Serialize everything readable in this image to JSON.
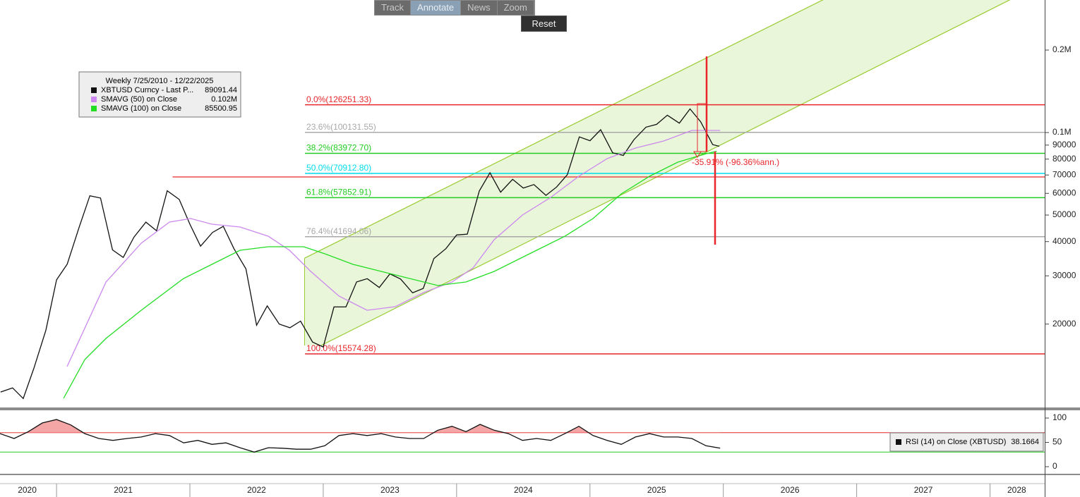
{
  "toolbar": {
    "buttons": [
      "Track",
      "Annotate",
      "News",
      "Zoom"
    ],
    "reset": "Reset"
  },
  "chart_data": [
    {
      "type": "line",
      "legend_title": "Weekly 7/25/2010 - 12/22/2025",
      "annotation": "-35.91% (-96.36%ann.)",
      "log_scale": true,
      "xlim": [
        2020.576,
        2028.41
      ],
      "ylim": [
        9925,
        304600
      ],
      "yticks": [
        {
          "value": 200000,
          "label": "0.2M"
        },
        {
          "value": 100000,
          "label": "0.1M"
        },
        90000,
        80000,
        70000,
        60000,
        50000,
        40000,
        30000,
        20000
      ],
      "xticks": [
        {
          "value": 2020.78,
          "label": "2020"
        },
        {
          "value": 2021.5,
          "label": "2021"
        },
        {
          "value": 2022.5,
          "label": "2022"
        },
        {
          "value": 2023.5,
          "label": "2023"
        },
        {
          "value": 2024.5,
          "label": "2024"
        },
        {
          "value": 2025.5,
          "label": "2025"
        },
        {
          "value": 2026.5,
          "label": "2026"
        },
        {
          "value": 2027.5,
          "label": "2027"
        },
        {
          "value": 2028.2,
          "label": "2028"
        }
      ],
      "year_boundaries": [
        2021,
        2022,
        2023,
        2024,
        2025,
        2026,
        2027,
        2028
      ],
      "series": [
        {
          "name": "XBTUSD Curncy - Last P...",
          "color": "#111111",
          "legend_value": 89091.44,
          "x": [
            2020.58,
            2020.67,
            2020.75,
            2020.83,
            2020.92,
            2021.0,
            2021.08,
            2021.17,
            2021.25,
            2021.33,
            2021.42,
            2021.5,
            2021.58,
            2021.67,
            2021.75,
            2021.83,
            2021.92,
            2022.0,
            2022.08,
            2022.17,
            2022.25,
            2022.33,
            2022.42,
            2022.5,
            2022.58,
            2022.67,
            2022.75,
            2022.83,
            2022.92,
            2023.0,
            2023.08,
            2023.17,
            2023.25,
            2023.33,
            2023.42,
            2023.5,
            2023.58,
            2023.67,
            2023.75,
            2023.83,
            2023.92,
            2024.0,
            2024.08,
            2024.17,
            2024.25,
            2024.33,
            2024.42,
            2024.5,
            2024.58,
            2024.67,
            2024.75,
            2024.83,
            2024.92,
            2025.0,
            2025.08,
            2025.17,
            2025.25,
            2025.33,
            2025.42,
            2025.5,
            2025.58,
            2025.67,
            2025.75,
            2025.83,
            2025.92,
            2025.97
          ],
          "values": [
            11300,
            11700,
            10700,
            13800,
            19000,
            29000,
            33100,
            45200,
            58800,
            57700,
            37300,
            35000,
            41500,
            47100,
            43800,
            61300,
            57000,
            46300,
            38500,
            43200,
            45500,
            37700,
            31800,
            19800,
            23300,
            20000,
            19400,
            20500,
            17200,
            16500,
            23100,
            23100,
            28500,
            29300,
            27200,
            30500,
            29200,
            26000,
            27000,
            34700,
            37700,
            42300,
            42600,
            61200,
            71300,
            60600,
            67500,
            62700,
            64600,
            59000,
            63300,
            70200,
            96400,
            93400,
            102400,
            84400,
            82500,
            94200,
            104600,
            107100,
            115700,
            108200,
            122000,
            109500,
            90400,
            89091.44
          ]
        },
        {
          "name": "SMAVG (50)  on Close",
          "color": "#cc88ee",
          "legend_value": {
            "value": 102000,
            "label": "0.102M"
          },
          "x": [
            2021.079,
            2021.371,
            2021.635,
            2021.847,
            2022.006,
            2022.165,
            2022.376,
            2022.588,
            2022.747,
            2022.906,
            2023.118,
            2023.329,
            2023.541,
            2023.753,
            2023.965,
            2024.123,
            2024.282,
            2024.494,
            2024.706,
            2024.917,
            2025.129,
            2025.341,
            2025.553,
            2025.764,
            2025.976
          ],
          "values": [
            13990,
            28490,
            39460,
            47130,
            48540,
            46300,
            45220,
            41850,
            37190,
            31130,
            25300,
            22470,
            23150,
            26060,
            28490,
            32060,
            40640,
            50000,
            57990,
            69260,
            80310,
            87780,
            93130,
            101800,
            101800
          ]
        },
        {
          "name": "SMAVG (100)  on Close",
          "color": "#22dd22",
          "legend_value": 85500.95,
          "x": [
            2021.053,
            2021.212,
            2021.371,
            2021.635,
            2021.953,
            2022.165,
            2022.376,
            2022.588,
            2022.853,
            2023.012,
            2023.223,
            2023.541,
            2023.859,
            2024.07,
            2024.282,
            2024.6,
            2024.812,
            2025.023,
            2025.235,
            2025.447,
            2025.659,
            2025.87,
            2025.95
          ],
          "values": [
            10720,
            14850,
            17740,
            22470,
            29350,
            33030,
            37190,
            38310,
            38310,
            36100,
            33030,
            30220,
            27650,
            28490,
            31130,
            37190,
            41850,
            48540,
            59730,
            69260,
            77980,
            83700,
            85500.95
          ]
        }
      ],
      "fib_start": 2022.863,
      "fib_levels": [
        {
          "label": "0.0%(126251.33)",
          "value": 126251.33,
          "color": "#e8262b"
        },
        {
          "label": "23.6%(100131.55)",
          "value": 100131.55,
          "color": "#a8a8a8"
        },
        {
          "label": "38.2%(83972.70)",
          "value": 83972.7,
          "color": "#22cc22"
        },
        {
          "label": "50.0%(70912.80)",
          "value": 70912.8,
          "color": "#00dcea"
        },
        {
          "label": "61.8%(57852.91)",
          "value": 57852.91,
          "color": "#22cc22"
        },
        {
          "label": "76.4%(41694.06)",
          "value": 41694.06,
          "color": "#a8a8a8"
        },
        {
          "label": "100.0%(15574.28)",
          "value": 15574.28,
          "color": "#e8262b"
        }
      ],
      "prior_high": {
        "value": 68850,
        "start": 2021.87,
        "color": "#e8262b"
      },
      "channel": {
        "color": "#99cc33",
        "fill": "#e6f4d2",
        "upper": {
          "x": [
            2022.86,
            2026.2
          ],
          "values": [
            34800,
            224700
          ]
        },
        "lower": {
          "x": [
            2022.985,
            2026.5
          ],
          "values": [
            16720,
            120700
          ]
        }
      }
    },
    {
      "type": "line",
      "xlim": [
        2020.576,
        2028.41
      ],
      "ylim": [
        -14.5,
        114.5
      ],
      "yticks": [
        0,
        50,
        100
      ],
      "levels": [
        {
          "value": 70,
          "color": "#e8262b"
        },
        {
          "value": 30,
          "color": "#22cc22"
        }
      ],
      "overbought_fill": "#f4a6a6",
      "series": [
        {
          "name": "RSI (14)  on Close (XBTUSD)",
          "color": "#111111",
          "legend_value": 38.1664,
          "x": [
            2020.576,
            2020.682,
            2020.788,
            2020.894,
            2021.0,
            2021.106,
            2021.212,
            2021.317,
            2021.423,
            2021.529,
            2021.635,
            2021.741,
            2021.847,
            2021.953,
            2022.059,
            2022.165,
            2022.271,
            2022.376,
            2022.482,
            2022.588,
            2022.694,
            2022.8,
            2022.906,
            2023.012,
            2023.118,
            2023.223,
            2023.329,
            2023.435,
            2023.541,
            2023.647,
            2023.753,
            2023.859,
            2023.965,
            2024.07,
            2024.176,
            2024.282,
            2024.388,
            2024.494,
            2024.6,
            2024.706,
            2024.812,
            2024.917,
            2025.023,
            2025.129,
            2025.235,
            2025.341,
            2025.447,
            2025.553,
            2025.659,
            2025.764,
            2025.87,
            2025.976
          ],
          "values": [
            68,
            58,
            72,
            90,
            97,
            86,
            68,
            58,
            54,
            58,
            61,
            68,
            64,
            49,
            54,
            46,
            49,
            39,
            30,
            39,
            38,
            36,
            36,
            43,
            64,
            68,
            64,
            68,
            61,
            58,
            58,
            75,
            83,
            72,
            87,
            75,
            68,
            54,
            58,
            54,
            68,
            83,
            64,
            54,
            46,
            61,
            68,
            61,
            61,
            58,
            43,
            38.1664
          ]
        }
      ]
    }
  ]
}
